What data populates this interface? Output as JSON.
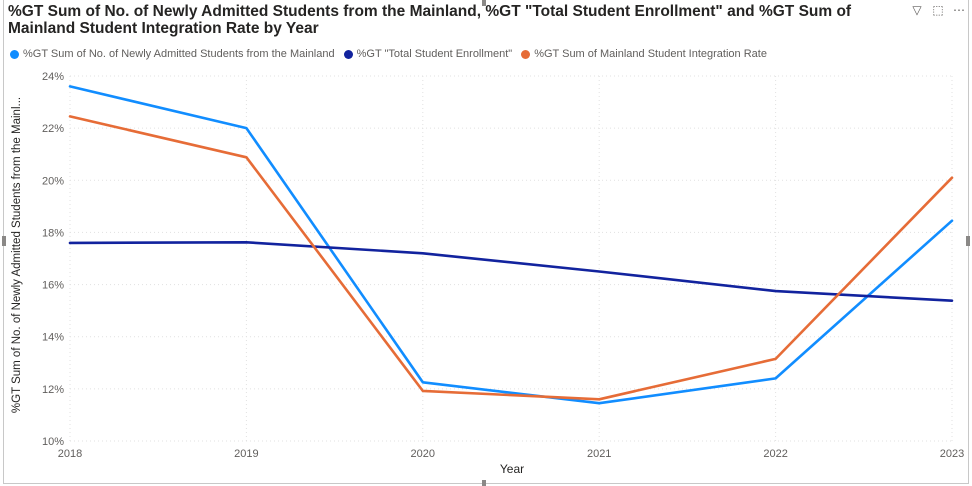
{
  "title": "%GT Sum of No. of Newly Admitted Students from the Mainland, %GT \"Total Student Enrollment\" and %GT Sum of Mainland Student Integration Rate by Year",
  "header_icons": [
    "filter-icon",
    "focus-mode-icon",
    "more-options-icon"
  ],
  "header_glyphs": {
    "filter": "▽",
    "focus": "⬚",
    "more": "⋯"
  },
  "chart_data": {
    "type": "line",
    "xlabel": "Year",
    "ylabel": "%GT Sum of No. of Newly Admitted Students from the Mainl...",
    "x": [
      "2018",
      "2019",
      "2020",
      "2021",
      "2022",
      "2023"
    ],
    "ylim": [
      10,
      24
    ],
    "yticks": [
      10,
      12,
      14,
      16,
      18,
      20,
      22,
      24
    ],
    "ytick_labels": [
      "10%",
      "12%",
      "14%",
      "16%",
      "18%",
      "20%",
      "22%",
      "24%"
    ],
    "grid": true,
    "legend_position": "top-left",
    "series": [
      {
        "name": "%GT Sum of No. of Newly Admitted Students from the Mainland",
        "color": "#118dff",
        "values": [
          23.6,
          22.0,
          12.25,
          11.45,
          12.4,
          18.45
        ]
      },
      {
        "name": "%GT \"Total Student Enrollment\"",
        "color": "#12239e",
        "values": [
          17.6,
          17.62,
          17.2,
          16.5,
          15.75,
          15.38
        ]
      },
      {
        "name": "%GT Sum of Mainland Student Integration Rate",
        "color": "#e66c37",
        "values": [
          22.45,
          20.88,
          11.92,
          11.6,
          13.15,
          20.1
        ]
      }
    ]
  }
}
